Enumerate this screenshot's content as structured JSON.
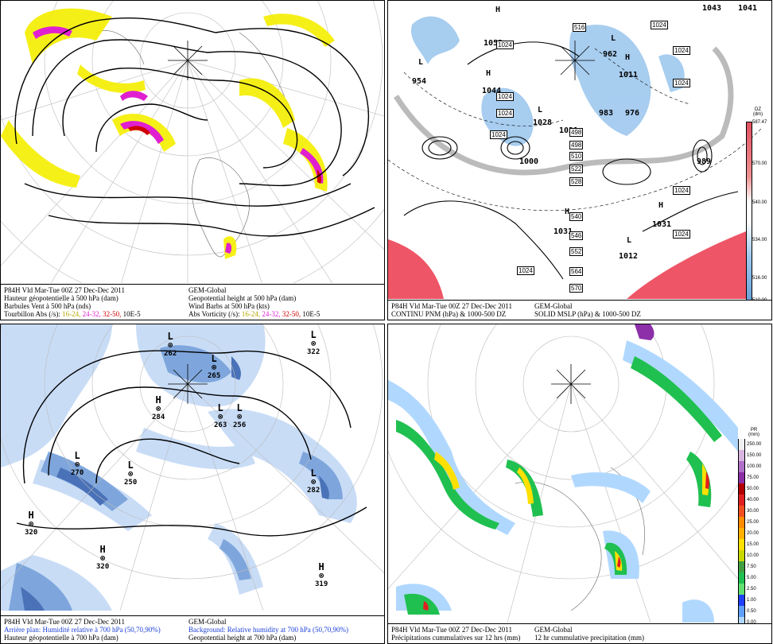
{
  "panels": {
    "tl": {
      "caption": {
        "l1": "P84H Vld Mar-Tue 00Z 27 Dec-Dec 2011",
        "r1": "GEM-Global",
        "l2": "Hauteur géopotentielle à 500 hPa (dam)",
        "r2": "Geopotential height at 500 hPa (dam)",
        "l3": "Barbules Vent à 500 hPa (nds)",
        "r3": "Wind Barbs at 500 hPa  (kts)",
        "l4a": "Tourbillon Abs (/s):",
        "l4b": "16-24,",
        "l4c": "24-32,",
        "l4d": "32-50,",
        "l4e": "10E-5",
        "r4a": "Abs Vorticity (/s):",
        "r4b": "16-24,",
        "r4c": "24-32,",
        "r4d": "32-50,",
        "r4e": "10E-5"
      }
    },
    "tr": {
      "caption": {
        "l1": "P84H Vld Mar-Tue 00Z 27 Dec-Dec 2011",
        "r1": "GEM-Global",
        "l2": "CONTINU PNM  (hPa) & 1000-500 DZ",
        "r2": "SOLID   MSLP (hPa) & 1000-500 DZ"
      },
      "legend_title": "DZ",
      "legend_unit": "(dm)",
      "legend_ticks": [
        "587.47",
        "570.00",
        "540.00",
        "534.00",
        "516.00",
        "510.00"
      ],
      "highs": [
        "H",
        "H",
        "H",
        "H",
        "H",
        "H"
      ],
      "lows": [
        "L",
        "L",
        "L",
        "L",
        "L",
        "L"
      ],
      "pressure_labels": [
        "1053",
        "954",
        "1043",
        "1041",
        "962",
        "1011",
        "1044",
        "1028",
        "1021",
        "983",
        "976",
        "1000",
        "989",
        "1031",
        "1031",
        "1012"
      ],
      "box_labels": [
        "1024",
        "1024",
        "1024",
        "1024",
        "1024",
        "1024",
        "1024",
        "1024",
        "1024",
        "1024"
      ],
      "dz_labels": [
        "516",
        "498",
        "498",
        "510",
        "522",
        "528",
        "540",
        "546",
        "552",
        "564",
        "570"
      ]
    },
    "bl": {
      "caption": {
        "l1": "P84H Vld Mar-Tue 00Z 27 Dec-Dec 2011",
        "r1": "GEM-Global",
        "l2": "Arrière plan: Humidité relative à 700 hPa (50,70,90%)",
        "r2": "Background: Relative humidity at 700 hPa (50,70,90%)",
        "l3": "Hauteur géopotentielle à 700 hPa (dam)",
        "r3": "Geopotential height at 700 hPa (dam)"
      },
      "centers": [
        {
          "sym": "L",
          "val": "262"
        },
        {
          "sym": "L",
          "val": "265"
        },
        {
          "sym": "H",
          "val": "284"
        },
        {
          "sym": "L",
          "val": "263"
        },
        {
          "sym": "L",
          "val": "256"
        },
        {
          "sym": "L",
          "val": "270"
        },
        {
          "sym": "L",
          "val": "250"
        },
        {
          "sym": "L",
          "val": "282"
        },
        {
          "sym": "H",
          "val": "320"
        },
        {
          "sym": "H",
          "val": "320"
        },
        {
          "sym": "H",
          "val": "319"
        },
        {
          "sym": "L",
          "val": "322"
        }
      ]
    },
    "br": {
      "caption": {
        "l1": "P84H Vld Mar-Tue 00Z 27 Dec-Dec 2011",
        "r1": "GEM-Global",
        "l2": "Précipitations cummulatives sur 12 hrs (mm)",
        "r2": "12 hr cummulative precipitation      (mm)"
      },
      "legend_title": "PR",
      "legend_unit": "(mm)",
      "legend_ticks": [
        "250.00",
        "150.00",
        "100.00",
        "75.00",
        "50.00",
        "40.00",
        "30.00",
        "25.00",
        "20.00",
        "15.00",
        "10.00",
        "7.50",
        "5.00",
        "2.50",
        "1.00",
        "0.50",
        "0.00"
      ],
      "legend_colors": [
        "#f0f0f0",
        "#d8b4e0",
        "#b070c8",
        "#8c2fa8",
        "#b20000",
        "#e02020",
        "#f05020",
        "#ff8c00",
        "#ffb000",
        "#ffe000",
        "#c8d800",
        "#40a040",
        "#20c050",
        "#60e070",
        "#2040ff",
        "#60a0ff",
        "#b0d8ff"
      ]
    }
  },
  "colors": {
    "vort_yellow": "#f5ee00",
    "vort_magenta": "#e020d0",
    "vort_red": "#d00000",
    "shade_blue": "#9ec8ee",
    "shade_red": "#ee5566",
    "rh_blue_light": "#c8dcf6",
    "rh_blue_mid": "#7fa6dc",
    "rh_blue_dark": "#4a72b8"
  }
}
